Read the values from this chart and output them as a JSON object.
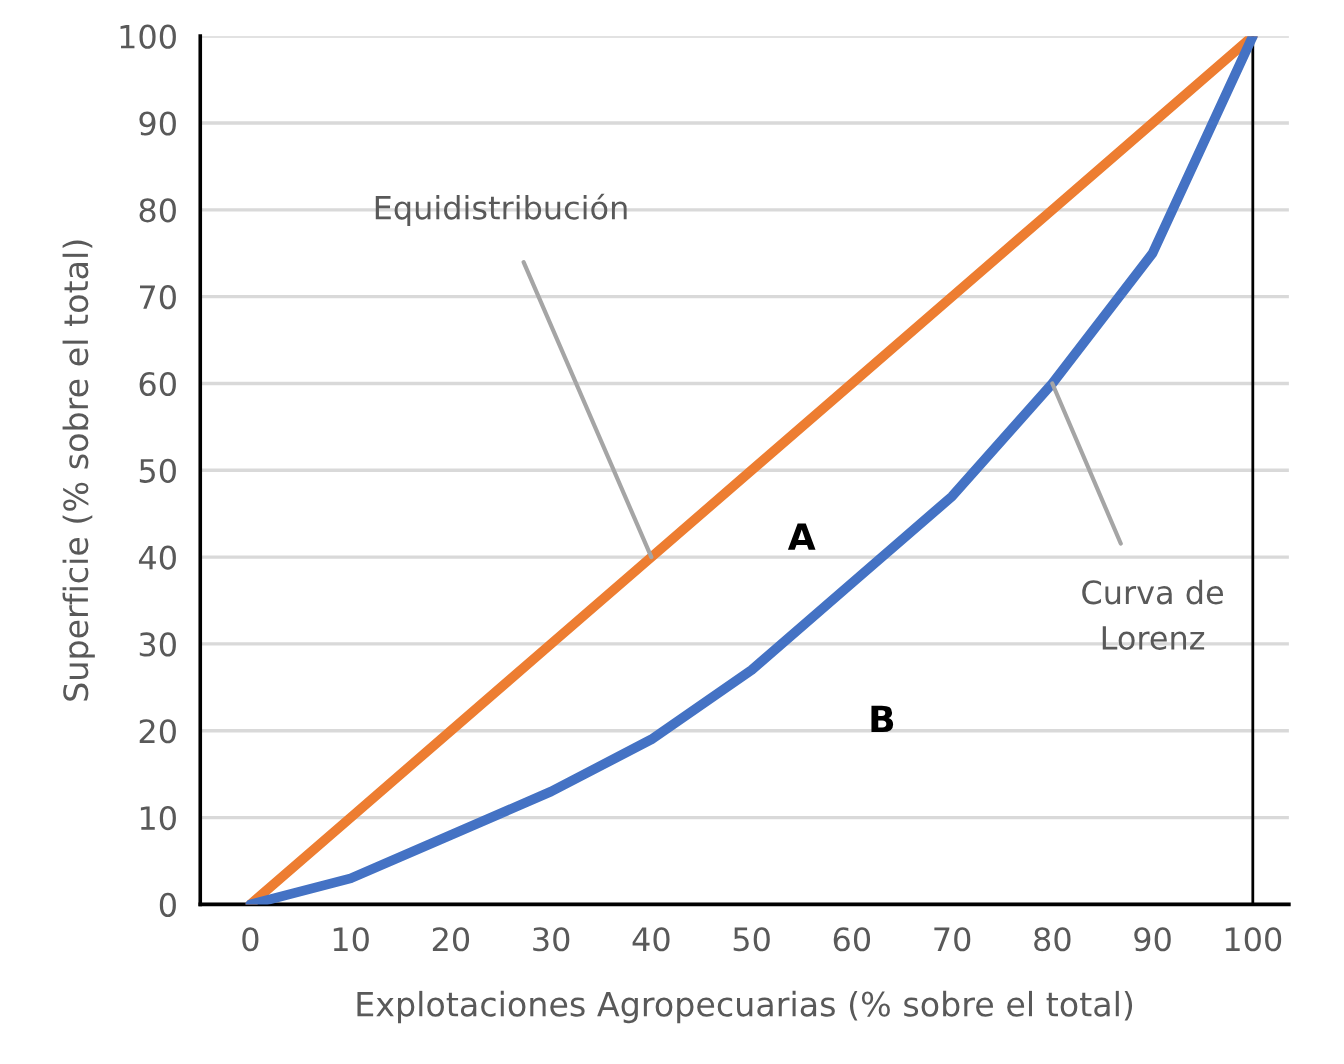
{
  "chart_data": {
    "type": "line",
    "xlabel": "Explotaciones Agropecuarias (% sobre el total)",
    "ylabel": "Superficie (% sobre el total)",
    "x": [
      0,
      10,
      20,
      30,
      40,
      50,
      60,
      70,
      80,
      90,
      100
    ],
    "series": [
      {
        "color": "#ed7d31",
        "values": [
          0,
          10,
          20,
          30,
          40,
          50,
          60,
          70,
          80,
          90,
          100
        ]
      },
      {
        "color": "#4472c4",
        "values": [
          0,
          3,
          8,
          13,
          19,
          27,
          37,
          47,
          60,
          75,
          100
        ]
      }
    ],
    "annotations": [
      {
        "text": "Equidistribución",
        "x": 40,
        "y": 40
      },
      {
        "text": "Curva de\nLorenz",
        "x": 80,
        "y": 60
      },
      "A",
      "B"
    ],
    "ref_lines": [
      {
        "axis": "x",
        "value": 100,
        "color": "#000000"
      }
    ],
    "xlim": [
      -5,
      103.6
    ],
    "ylim": [
      0,
      100
    ],
    "xticks": [
      0,
      10,
      20,
      30,
      40,
      50,
      60,
      70,
      80,
      90,
      100
    ],
    "yticks": [
      0,
      10,
      20,
      30,
      40,
      50,
      60,
      70,
      80,
      90,
      100
    ],
    "grid": "y",
    "legend": false,
    "marker": "none",
    "line_style": "solid"
  }
}
